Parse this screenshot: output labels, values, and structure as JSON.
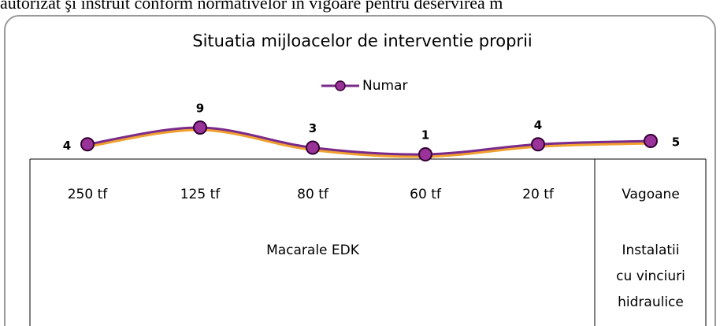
{
  "header_text": "autorizat şi instruit conform normativelor în vigoare pentru deservirea m",
  "chart_data": {
    "type": "line",
    "title": "Situatia mijloacelor de interventie proprii",
    "category_groups": [
      {
        "label": [
          "Macarale EDK"
        ],
        "categories": [
          "250 tf",
          "125 tf",
          "80 tf",
          "60 tf",
          "20 tf"
        ]
      },
      {
        "label": [
          "Instalatii",
          "cu vinciuri",
          "hidraulice"
        ],
        "categories": [
          "Vagoane"
        ]
      }
    ],
    "series": [
      {
        "name": "Numar",
        "color": "#7a2a8a",
        "values": [
          4,
          9,
          3,
          1,
          4,
          5
        ]
      }
    ],
    "legend": "top",
    "data_labels": true
  }
}
